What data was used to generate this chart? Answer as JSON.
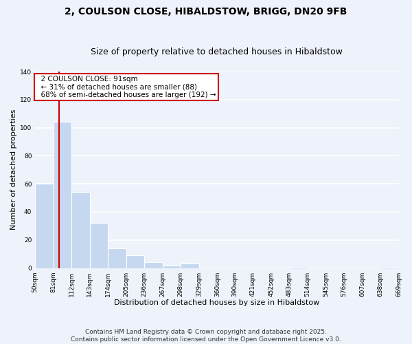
{
  "title": "2, COULSON CLOSE, HIBALDSTOW, BRIGG, DN20 9FB",
  "subtitle": "Size of property relative to detached houses in Hibaldstow",
  "xlabel": "Distribution of detached houses by size in Hibaldstow",
  "ylabel": "Number of detached properties",
  "bins": [
    50,
    81,
    112,
    143,
    174,
    205,
    236,
    267,
    298,
    329,
    360,
    390,
    421,
    452,
    483,
    514,
    545,
    576,
    607,
    638,
    669
  ],
  "counts": [
    60,
    104,
    54,
    32,
    14,
    9,
    4,
    2,
    3,
    0,
    0,
    0,
    0,
    0,
    1,
    0,
    0,
    0,
    0,
    1
  ],
  "bar_color": "#c5d8f0",
  "bar_edge_color": "white",
  "vline_x": 91,
  "vline_color": "#cc0000",
  "annotation_title": "2 COULSON CLOSE: 91sqm",
  "annotation_line1": "← 31% of detached houses are smaller (88)",
  "annotation_line2": "68% of semi-detached houses are larger (192) →",
  "annotation_box_color": "white",
  "annotation_box_edge_color": "#cc0000",
  "ylim": [
    0,
    140
  ],
  "yticks": [
    0,
    20,
    40,
    60,
    80,
    100,
    120,
    140
  ],
  "footnote1": "Contains HM Land Registry data © Crown copyright and database right 2025.",
  "footnote2": "Contains public sector information licensed under the Open Government Licence v3.0.",
  "bg_color": "#eef2fa",
  "grid_color": "white",
  "title_fontsize": 10,
  "subtitle_fontsize": 9,
  "axis_label_fontsize": 8,
  "tick_fontsize": 6.5,
  "annotation_fontsize": 7.5,
  "footnote_fontsize": 6.5
}
